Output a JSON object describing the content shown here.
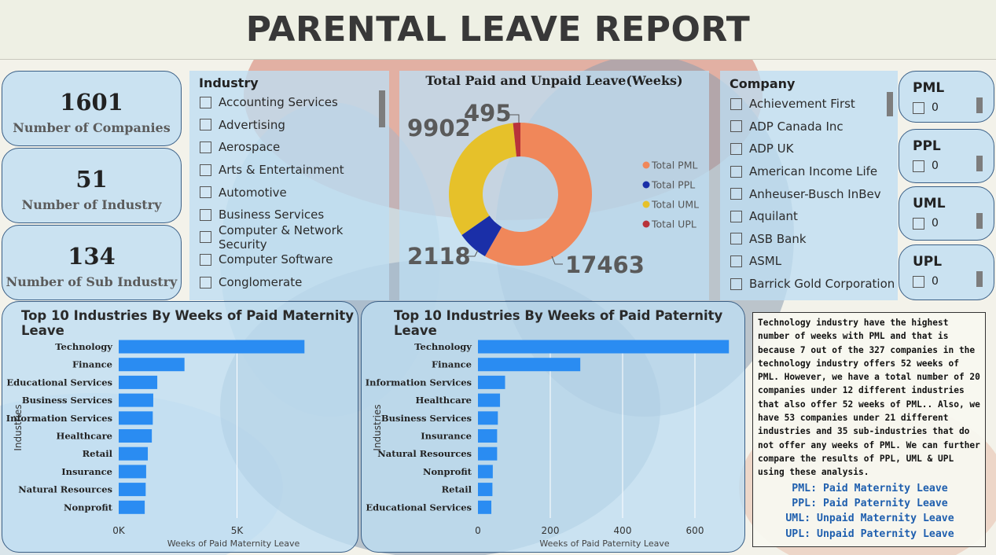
{
  "header": {
    "title": "PARENTAL LEAVE REPORT"
  },
  "kpis": [
    {
      "value": "1601",
      "label": "Number of Companies"
    },
    {
      "value": "51",
      "label": "Number of Industry"
    },
    {
      "value": "134",
      "label": "Number of Sub Industry"
    }
  ],
  "industry_slicer": {
    "title": "Industry",
    "items": [
      "Accounting Services",
      "Advertising",
      "Aerospace",
      "Arts & Entertainment",
      "Automotive",
      "Business Services",
      "Computer & Network Security",
      "Computer Software",
      "Conglomerate"
    ]
  },
  "company_slicer": {
    "title": "Company",
    "items": [
      "Achievement First",
      "ADP Canada Inc",
      "ADP UK",
      "American Income Life",
      "Anheuser-Busch InBev",
      "Aquilant",
      "ASB Bank",
      "ASML",
      "Barrick Gold Corporation"
    ]
  },
  "mini_slicers": [
    {
      "title": "PML",
      "value": "0"
    },
    {
      "title": "PPL",
      "value": "0"
    },
    {
      "title": "UML",
      "value": "0"
    },
    {
      "title": "UPL",
      "value": "0"
    }
  ],
  "donut": {
    "title": "Total Paid and Unpaid Leave(Weeks)",
    "labels": {
      "pml": "17463",
      "ppl": "2118",
      "uml": "9902",
      "upl": "495"
    }
  },
  "notes": {
    "body": "Technology industry have the highest number of weeks with PML and that is because 7 out of the 327 companies in the technology industry offers 52 weeks of PML. However, we have a total number of 20 companies under 12 different industries that also offer 52 weeks of PML.. Also, we have 53 companies under 21 different industries and 35 sub-industries that do not offer any weeks of PML. We can further compare the results of PPL, UML & UPL using these analysis.",
    "defs": [
      "PML: Paid Maternity Leave",
      "PPL: Paid Paternity Leave",
      "UML: Unpaid Maternity Leave",
      "UPL: Unpaid Paternity Leave"
    ]
  },
  "colors": {
    "pml": "#f0875a",
    "ppl": "#1a2fa8",
    "uml": "#e6c12a",
    "upl": "#b8323a",
    "bar": "#2a8cf2"
  },
  "chart_data": [
    {
      "type": "pie",
      "title": "Total Paid and Unpaid Leave(Weeks)",
      "categories": [
        "Total PML",
        "Total PPL",
        "Total UML",
        "Total UPL"
      ],
      "values": [
        17463,
        2118,
        9902,
        495
      ],
      "legend": "right"
    },
    {
      "type": "bar",
      "orientation": "horizontal",
      "title": "Top 10 Industries By Weeks of Paid Maternity Leave",
      "categories": [
        "Technology",
        "Finance",
        "Educational Services",
        "Business Services",
        "Information Services",
        "Healthcare",
        "Retail",
        "Insurance",
        "Natural Resources",
        "Nonprofit"
      ],
      "values": [
        7850,
        2780,
        1630,
        1460,
        1440,
        1400,
        1230,
        1160,
        1140,
        1100
      ],
      "xlabel": "Weeks of Paid Maternity Leave",
      "ylabel": "Industries",
      "xticks": [
        0,
        5000
      ],
      "xtick_labels": [
        "0K",
        "5K"
      ],
      "xlim": [
        0,
        9700
      ]
    },
    {
      "type": "bar",
      "orientation": "horizontal",
      "title": "Top 10 Industries By Weeks of Paid Paternity Leave",
      "categories": [
        "Technology",
        "Finance",
        "Information Services",
        "Healthcare",
        "Business Services",
        "Insurance",
        "Natural Resources",
        "Nonprofit",
        "Retail",
        "Educational Services"
      ],
      "values": [
        694,
        283,
        75,
        61,
        55,
        53,
        53,
        41,
        40,
        37
      ],
      "xlabel": "Weeks of Paid Paternity Leave",
      "ylabel": "Industries",
      "xticks": [
        0,
        200,
        400,
        600
      ],
      "xtick_labels": [
        "0",
        "200",
        "400",
        "600"
      ],
      "xlim": [
        0,
        700
      ]
    }
  ]
}
